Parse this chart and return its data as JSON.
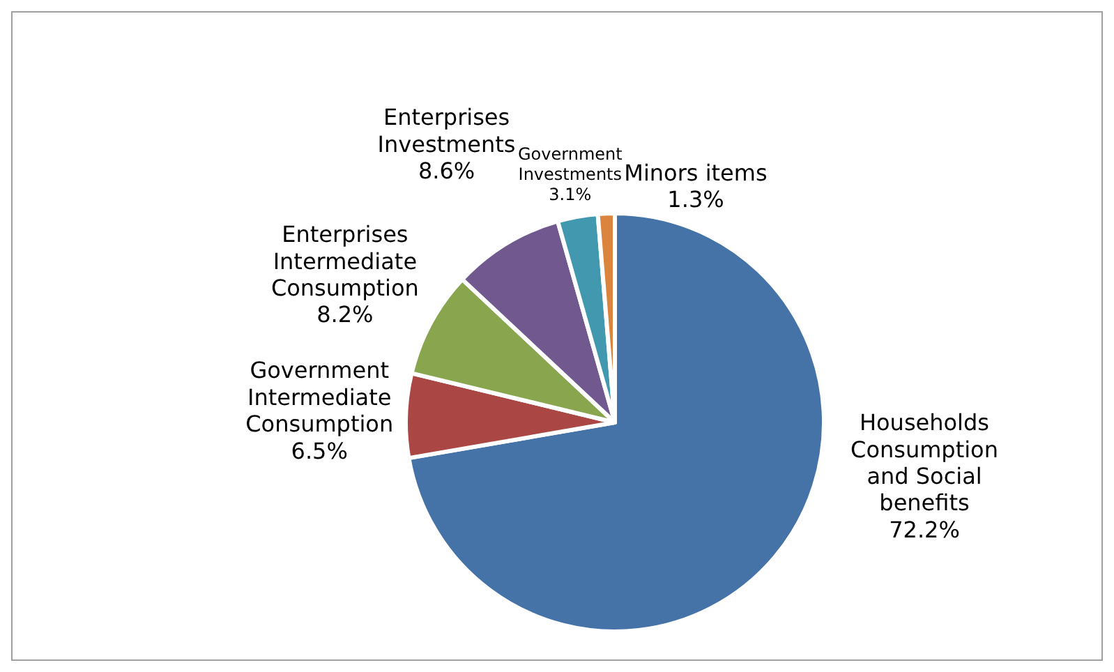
{
  "chart_data": {
    "type": "pie",
    "categories": [
      "Households Consumption and Social benefits",
      "Government Intermediate Consumption",
      "Enterprises Intermediate Consumption",
      "Enterprises Investments",
      "Government Investments",
      "Minors items"
    ],
    "values": [
      72.2,
      6.5,
      8.2,
      8.6,
      3.1,
      1.3
    ],
    "colors": [
      "#4572a7",
      "#aa4643",
      "#89a54e",
      "#71588f",
      "#4198af",
      "#db843d"
    ],
    "value_labels": [
      "72.2%",
      "6.5%",
      "8.2%",
      "8.6%",
      "3.1%",
      "1.3%"
    ]
  }
}
